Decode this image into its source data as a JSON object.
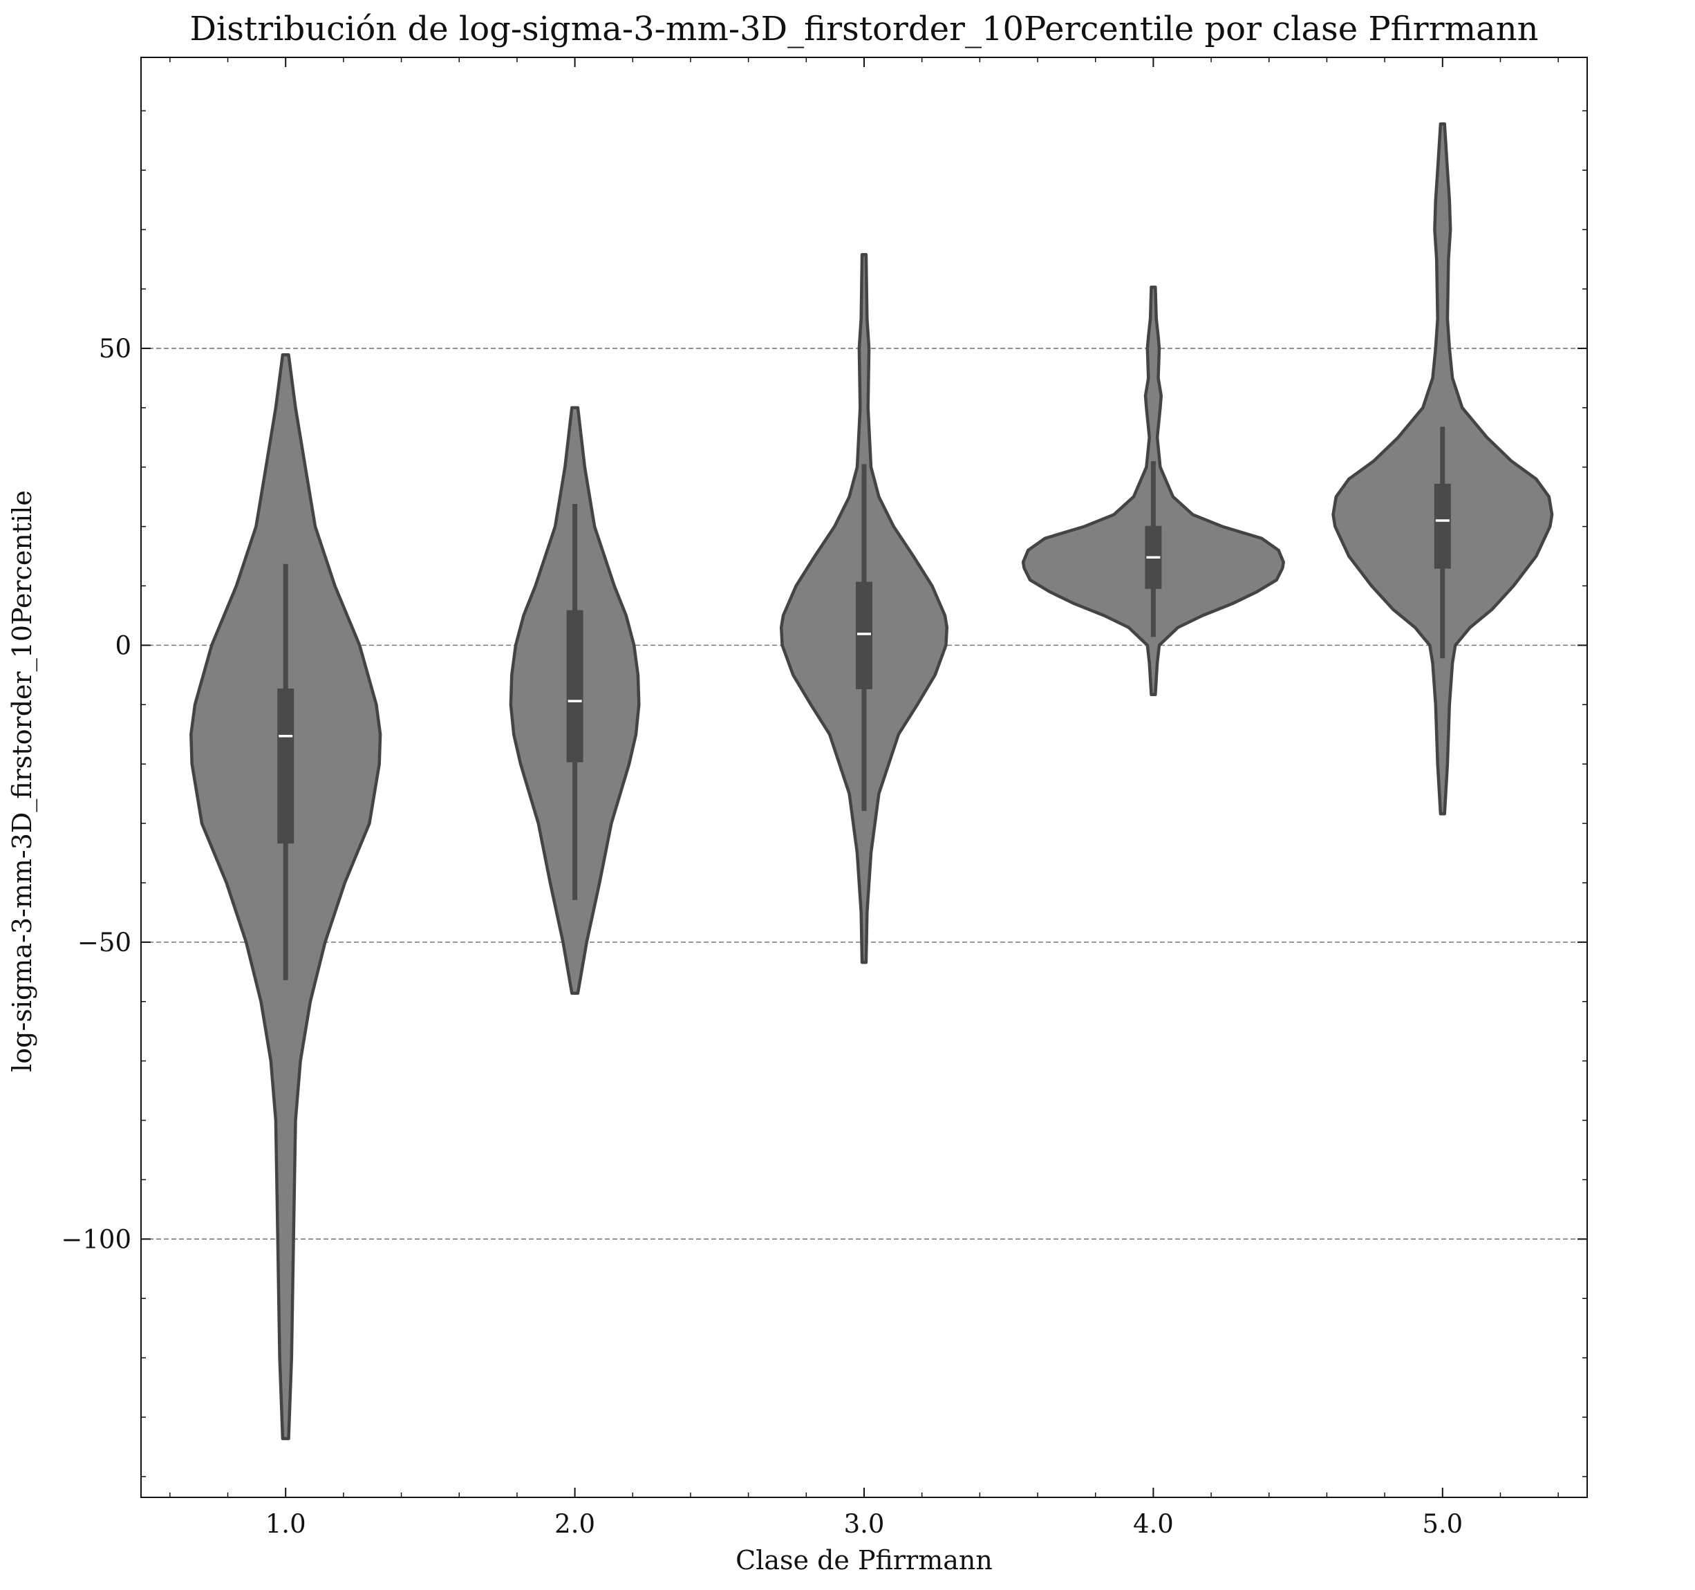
{
  "chart_data": {
    "type": "violin",
    "title": "Distribución de log-sigma-3-mm-3D_firstorder_10Percentile por clase Pfirrmann",
    "xlabel": "Clase de Pfirrmann",
    "ylabel": "log-sigma-3-mm-3D_firstorder_10Percentile",
    "categories": [
      "1.0",
      "2.0",
      "3.0",
      "4.0",
      "5.0"
    ],
    "xlim": [
      0.5,
      5.5
    ],
    "ylim": [
      -143.5,
      99
    ],
    "y_ticks": [
      50,
      0,
      -50,
      -100
    ],
    "y_tick_labels": [
      "50",
      "0",
      "−50",
      "−100"
    ],
    "grid": "horizontal dashed",
    "colors": {
      "violin_fill": "#808080",
      "violin_edge": "#444444",
      "box": "#4a4a4a",
      "median": "#ffffff",
      "grid": "#777777"
    },
    "violins": [
      {
        "x": 1,
        "median": -15.3,
        "q1": -33.4,
        "q3": -7.3,
        "whisker_low": -56.4,
        "whisker_high": 13.7,
        "profile": [
          [
            -133.6,
            0.3
          ],
          [
            -120,
            0.6
          ],
          [
            -100,
            0.8
          ],
          [
            -80,
            1.0
          ],
          [
            -70,
            1.5
          ],
          [
            -60,
            2.5
          ],
          [
            -50,
            4
          ],
          [
            -40,
            6
          ],
          [
            -30,
            8.5
          ],
          [
            -20,
            9.5
          ],
          [
            -15,
            9.6
          ],
          [
            -10,
            9.2
          ],
          [
            0,
            7.5
          ],
          [
            10,
            5
          ],
          [
            20,
            3
          ],
          [
            30,
            2
          ],
          [
            40,
            1
          ],
          [
            48.9,
            0.3
          ]
        ]
      },
      {
        "x": 2,
        "median": -9.4,
        "q1": -19.7,
        "q3": 5.9,
        "whisker_low": -42.9,
        "whisker_high": 23.8,
        "profile": [
          [
            -58.6,
            0.3
          ],
          [
            -50,
            1.2
          ],
          [
            -40,
            2.5
          ],
          [
            -30,
            3.7
          ],
          [
            -20,
            5.5
          ],
          [
            -15,
            6.2
          ],
          [
            -10,
            6.5
          ],
          [
            -5,
            6.4
          ],
          [
            0,
            6
          ],
          [
            5,
            5.2
          ],
          [
            10,
            4
          ],
          [
            20,
            2
          ],
          [
            30,
            1
          ],
          [
            40,
            0.3
          ]
        ]
      },
      {
        "x": 3,
        "median": 1.9,
        "q1": -7.4,
        "q3": 10.7,
        "whisker_low": -27.9,
        "whisker_high": 30.5,
        "profile": [
          [
            -53.4,
            0.2
          ],
          [
            -45,
            0.3
          ],
          [
            -35,
            0.7
          ],
          [
            -25,
            1.5
          ],
          [
            -15,
            3.5
          ],
          [
            -10,
            5.4
          ],
          [
            -5,
            7.2
          ],
          [
            0,
            8.3
          ],
          [
            3,
            8.4
          ],
          [
            5,
            8.2
          ],
          [
            10,
            6.9
          ],
          [
            15,
            5
          ],
          [
            20,
            3
          ],
          [
            25,
            1.5
          ],
          [
            30,
            0.7
          ],
          [
            40,
            0.4
          ],
          [
            50,
            0.5
          ],
          [
            55,
            0.3
          ],
          [
            65.8,
            0.2
          ]
        ]
      },
      {
        "x": 4,
        "median": 14.8,
        "q1": 9.5,
        "q3": 20.1,
        "whisker_low": 1.4,
        "whisker_high": 31.0,
        "profile": [
          [
            -8.3,
            0.2
          ],
          [
            -3,
            0.4
          ],
          [
            0,
            0.6
          ],
          [
            3,
            2.5
          ],
          [
            5,
            5
          ],
          [
            7,
            8
          ],
          [
            9,
            10.5
          ],
          [
            11,
            12.5
          ],
          [
            13,
            13.1
          ],
          [
            14,
            13.2
          ],
          [
            16,
            12.7
          ],
          [
            18,
            11
          ],
          [
            20,
            7
          ],
          [
            22,
            4
          ],
          [
            25,
            2
          ],
          [
            30,
            0.7
          ],
          [
            35,
            0.4
          ],
          [
            40,
            0.7
          ],
          [
            42,
            0.8
          ],
          [
            45,
            0.5
          ],
          [
            50,
            0.6
          ],
          [
            52,
            0.5
          ],
          [
            55,
            0.3
          ],
          [
            60.3,
            0.2
          ]
        ]
      },
      {
        "x": 5,
        "median": 21.0,
        "q1": 12.9,
        "q3": 27.2,
        "whisker_low": -2.2,
        "whisker_high": 36.8,
        "profile": [
          [
            -28.4,
            0.2
          ],
          [
            -20,
            0.5
          ],
          [
            -10,
            0.7
          ],
          [
            -3,
            1
          ],
          [
            0,
            1.3
          ],
          [
            3,
            2.8
          ],
          [
            6,
            5
          ],
          [
            10,
            7.2
          ],
          [
            15,
            9.5
          ],
          [
            20,
            10.9
          ],
          [
            22,
            11.1
          ],
          [
            25,
            10.8
          ],
          [
            28,
            9.5
          ],
          [
            31,
            7
          ],
          [
            35,
            4.5
          ],
          [
            40,
            2
          ],
          [
            45,
            1
          ],
          [
            50,
            0.7
          ],
          [
            55,
            0.5
          ],
          [
            65,
            0.6
          ],
          [
            70,
            0.8
          ],
          [
            75,
            0.7
          ],
          [
            80,
            0.5
          ],
          [
            87.8,
            0.2
          ]
        ]
      }
    ]
  }
}
